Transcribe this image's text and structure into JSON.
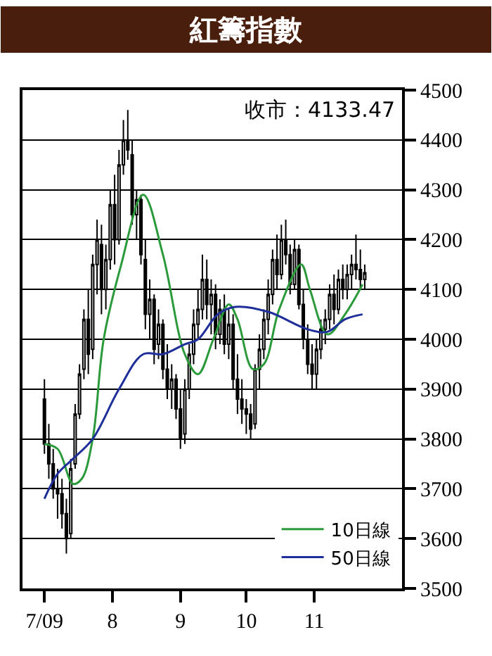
{
  "chart_data": {
    "type": "candlestick",
    "title": "紅籌指數",
    "annotations": [
      "收市：4133.47"
    ],
    "x": [
      "2009-07-01",
      "2009-07-03",
      "2009-07-05",
      "2009-07-07",
      "2009-07-09",
      "2009-07-11",
      "2009-07-13",
      "2009-07-15",
      "2009-07-17",
      "2009-07-19",
      "2009-07-21",
      "2009-07-23",
      "2009-07-25",
      "2009-07-27",
      "2009-07-29",
      "2009-07-31",
      "2009-08-02",
      "2009-08-04",
      "2009-08-06",
      "2009-08-08",
      "2009-08-10",
      "2009-08-12",
      "2009-08-14",
      "2009-08-16",
      "2009-08-18",
      "2009-08-20",
      "2009-08-22",
      "2009-08-24",
      "2009-08-26",
      "2009-08-28",
      "2009-08-30",
      "2009-09-01",
      "2009-09-03",
      "2009-09-05",
      "2009-09-07",
      "2009-09-09",
      "2009-09-11",
      "2009-09-13",
      "2009-09-15",
      "2009-09-17",
      "2009-09-19",
      "2009-09-21",
      "2009-09-23",
      "2009-09-25",
      "2009-09-27",
      "2009-09-29",
      "2009-10-01",
      "2009-10-03",
      "2009-10-05",
      "2009-10-07",
      "2009-10-09",
      "2009-10-11",
      "2009-10-13",
      "2009-10-15",
      "2009-10-17",
      "2009-10-19",
      "2009-10-21",
      "2009-10-23",
      "2009-10-25",
      "2009-10-27",
      "2009-10-29",
      "2009-10-31",
      "2009-11-02",
      "2009-11-04",
      "2009-11-06",
      "2009-11-08",
      "2009-11-10",
      "2009-11-12",
      "2009-11-14",
      "2009-11-16",
      "2009-11-18",
      "2009-11-20",
      "2009-11-22",
      "2009-11-24"
    ],
    "ohlc": [
      [
        3880,
        3920,
        3770,
        3790
      ],
      [
        3790,
        3830,
        3720,
        3750
      ],
      [
        3750,
        3780,
        3680,
        3700
      ],
      [
        3700,
        3740,
        3640,
        3690
      ],
      [
        3690,
        3720,
        3620,
        3650
      ],
      [
        3650,
        3680,
        3570,
        3600
      ],
      [
        3610,
        3760,
        3600,
        3740
      ],
      [
        3750,
        3870,
        3740,
        3850
      ],
      [
        3850,
        3950,
        3840,
        3930
      ],
      [
        3940,
        4060,
        3920,
        4040
      ],
      [
        4040,
        4100,
        3930,
        3970
      ],
      [
        3980,
        4170,
        3960,
        4150
      ],
      [
        4150,
        4240,
        4090,
        4200
      ],
      [
        4190,
        4230,
        4050,
        4100
      ],
      [
        4100,
        4190,
        4060,
        4160
      ],
      [
        4160,
        4300,
        4140,
        4270
      ],
      [
        4270,
        4330,
        4150,
        4200
      ],
      [
        4200,
        4380,
        4190,
        4350
      ],
      [
        4350,
        4440,
        4330,
        4400
      ],
      [
        4400,
        4460,
        4360,
        4380
      ],
      [
        4370,
        4400,
        4230,
        4250
      ],
      [
        4250,
        4300,
        4200,
        4280
      ],
      [
        4280,
        4290,
        4150,
        4170
      ],
      [
        4160,
        4200,
        4020,
        4050
      ],
      [
        4050,
        4120,
        4000,
        4080
      ],
      [
        4080,
        4090,
        3950,
        3980
      ],
      [
        3990,
        4060,
        3960,
        4030
      ],
      [
        4030,
        4040,
        3920,
        3940
      ],
      [
        3940,
        3990,
        3880,
        3900
      ],
      [
        3900,
        3950,
        3860,
        3920
      ],
      [
        3920,
        3930,
        3840,
        3860
      ],
      [
        3860,
        3900,
        3780,
        3800
      ],
      [
        3810,
        3920,
        3790,
        3900
      ],
      [
        3900,
        3990,
        3880,
        3970
      ],
      [
        3970,
        4060,
        3950,
        4030
      ],
      [
        4030,
        4100,
        4000,
        4060
      ],
      [
        4060,
        4170,
        4040,
        4120
      ],
      [
        4120,
        4160,
        4040,
        4070
      ],
      [
        4070,
        4120,
        4010,
        4090
      ],
      [
        4090,
        4110,
        3980,
        4010
      ],
      [
        4010,
        4080,
        3990,
        4060
      ],
      [
        4060,
        4090,
        3970,
        3990
      ],
      [
        3990,
        4060,
        3960,
        4030
      ],
      [
        4030,
        4050,
        3900,
        3920
      ],
      [
        3920,
        3970,
        3850,
        3880
      ],
      [
        3880,
        3920,
        3830,
        3860
      ],
      [
        3860,
        3880,
        3810,
        3850
      ],
      [
        3850,
        3870,
        3800,
        3820
      ],
      [
        3830,
        3950,
        3820,
        3940
      ],
      [
        3940,
        4010,
        3900,
        3980
      ],
      [
        3980,
        4060,
        3960,
        4040
      ],
      [
        4040,
        4120,
        4010,
        4090
      ],
      [
        4090,
        4180,
        4070,
        4160
      ],
      [
        4160,
        4210,
        4100,
        4130
      ],
      [
        4130,
        4230,
        4120,
        4200
      ],
      [
        4200,
        4240,
        4150,
        4170
      ],
      [
        4170,
        4190,
        4090,
        4110
      ],
      [
        4110,
        4200,
        4100,
        4180
      ],
      [
        4180,
        4190,
        4060,
        4070
      ],
      [
        4070,
        4100,
        3980,
        4000
      ],
      [
        4000,
        4030,
        3930,
        3950
      ],
      [
        3950,
        3990,
        3900,
        3930
      ],
      [
        3930,
        4000,
        3900,
        3980
      ],
      [
        3980,
        4040,
        3960,
        4020
      ],
      [
        4020,
        4060,
        3990,
        4040
      ],
      [
        4040,
        4110,
        4020,
        4090
      ],
      [
        4090,
        4130,
        4030,
        4060
      ],
      [
        4060,
        4140,
        4050,
        4120
      ],
      [
        4120,
        4150,
        4080,
        4100
      ],
      [
        4100,
        4150,
        4080,
        4130
      ],
      [
        4130,
        4170,
        4100,
        4150
      ],
      [
        4150,
        4210,
        4120,
        4140
      ],
      [
        4140,
        4180,
        4100,
        4120
      ],
      [
        4120,
        4150,
        4100,
        4133.47
      ]
    ],
    "series": [
      {
        "name": "10日線",
        "type": "line",
        "color": "#2a9a3a",
        "x": [
          "2009-07-01",
          "2009-07-07",
          "2009-07-14",
          "2009-07-18",
          "2009-07-23",
          "2009-07-28",
          "2009-08-05",
          "2009-08-15",
          "2009-08-24",
          "2009-09-03",
          "2009-09-09",
          "2009-09-16",
          "2009-09-23",
          "2009-09-27",
          "2009-10-04",
          "2009-10-09",
          "2009-10-16",
          "2009-10-26",
          "2009-10-30",
          "2009-11-07",
          "2009-11-15",
          "2009-11-23"
        ],
        "values": [
          3790,
          3780,
          3710,
          3720,
          3800,
          4000,
          4150,
          4290,
          4170,
          3970,
          3930,
          4000,
          4070,
          4040,
          3940,
          3950,
          4060,
          4150,
          4100,
          4010,
          4050,
          4110
        ]
      },
      {
        "name": "50日線",
        "type": "line",
        "color": "#1f2f9a",
        "x": [
          "2009-07-01",
          "2009-07-07",
          "2009-07-14",
          "2009-07-23",
          "2009-08-04",
          "2009-08-15",
          "2009-08-24",
          "2009-09-03",
          "2009-09-09",
          "2009-09-18",
          "2009-09-26",
          "2009-10-11",
          "2009-10-29",
          "2009-11-07",
          "2009-11-15",
          "2009-11-23"
        ],
        "values": [
          3680,
          3730,
          3760,
          3800,
          3900,
          3970,
          3970,
          3990,
          4000,
          4050,
          4065,
          4055,
          4020,
          4015,
          4040,
          4050
        ]
      }
    ],
    "xlim": [
      "2009-06-21",
      "2009-12-11"
    ],
    "xticks": [
      {
        "value": "2009-07-01",
        "label": "7/09"
      },
      {
        "value": "2009-08-01",
        "label": "8"
      },
      {
        "value": "2009-09-01",
        "label": "9"
      },
      {
        "value": "2009-10-01",
        "label": "10"
      },
      {
        "value": "2009-11-01",
        "label": "11"
      }
    ],
    "ylim": [
      3500,
      4500
    ],
    "yticks": [
      3500,
      3600,
      3700,
      3800,
      3900,
      4000,
      4100,
      4200,
      4300,
      4400,
      4500
    ],
    "grid": "y",
    "legend": "bottom right"
  }
}
